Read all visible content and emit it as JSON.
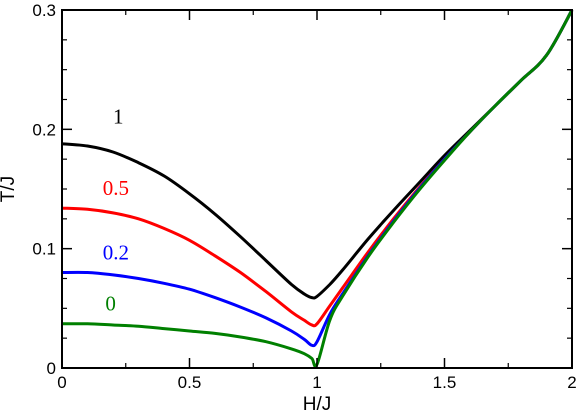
{
  "chart_data": {
    "type": "line",
    "xlabel": "H/J",
    "ylabel": "T/J",
    "xlim": [
      0,
      2
    ],
    "ylim": [
      0,
      0.3
    ],
    "x_ticks": [
      0,
      0.5,
      1,
      1.5,
      2
    ],
    "x_tick_labels": [
      "0",
      "0.5",
      "1",
      "1.5",
      "2"
    ],
    "y_ticks": [
      0,
      0.1,
      0.2,
      0.3
    ],
    "y_tick_labels": [
      "0",
      "0.1",
      "0.2",
      "0.3"
    ],
    "grid": false,
    "legend": "none",
    "series": [
      {
        "name": "1",
        "color": "#000000",
        "x": [
          0,
          0.1,
          0.2,
          0.3,
          0.4,
          0.5,
          0.6,
          0.7,
          0.8,
          0.9,
          0.95,
          0.98,
          1.0,
          1.05,
          1.1,
          1.2,
          1.3,
          1.4,
          1.5,
          1.6,
          1.7,
          1.8,
          1.9,
          2.0
        ],
        "y": [
          0.188,
          0.186,
          0.181,
          0.172,
          0.161,
          0.146,
          0.129,
          0.11,
          0.09,
          0.07,
          0.062,
          0.059,
          0.06,
          0.07,
          0.082,
          0.108,
          0.132,
          0.155,
          0.178,
          0.199,
          0.22,
          0.241,
          0.262,
          0.3
        ]
      },
      {
        "name": "0.5",
        "color": "#ff0000",
        "x": [
          0,
          0.1,
          0.2,
          0.3,
          0.4,
          0.5,
          0.6,
          0.7,
          0.8,
          0.9,
          0.95,
          0.98,
          1.0,
          1.05,
          1.1,
          1.2,
          1.3,
          1.4,
          1.5,
          1.6,
          1.7,
          1.8,
          1.9,
          2.0
        ],
        "y": [
          0.134,
          0.133,
          0.13,
          0.125,
          0.117,
          0.107,
          0.094,
          0.08,
          0.064,
          0.047,
          0.04,
          0.036,
          0.037,
          0.052,
          0.067,
          0.097,
          0.125,
          0.151,
          0.175,
          0.198,
          0.22,
          0.241,
          0.262,
          0.3
        ]
      },
      {
        "name": "0.2",
        "color": "#0000ff",
        "x": [
          0,
          0.1,
          0.2,
          0.3,
          0.4,
          0.5,
          0.6,
          0.7,
          0.8,
          0.9,
          0.95,
          0.98,
          1.0,
          1.05,
          1.1,
          1.2,
          1.3,
          1.4,
          1.5,
          1.6,
          1.7,
          1.8,
          1.9,
          2.0
        ],
        "y": [
          0.08,
          0.08,
          0.078,
          0.075,
          0.071,
          0.066,
          0.059,
          0.051,
          0.042,
          0.031,
          0.024,
          0.019,
          0.022,
          0.045,
          0.062,
          0.094,
          0.123,
          0.15,
          0.175,
          0.198,
          0.22,
          0.241,
          0.262,
          0.3
        ]
      },
      {
        "name": "0",
        "color": "#008000",
        "x": [
          0,
          0.1,
          0.2,
          0.3,
          0.4,
          0.5,
          0.6,
          0.7,
          0.8,
          0.9,
          0.95,
          0.98,
          1.0,
          1.05,
          1.1,
          1.2,
          1.3,
          1.4,
          1.5,
          1.6,
          1.7,
          1.8,
          1.9,
          2.0
        ],
        "y": [
          0.037,
          0.037,
          0.036,
          0.035,
          0.033,
          0.031,
          0.029,
          0.026,
          0.022,
          0.016,
          0.012,
          0.008,
          0.003,
          0.04,
          0.06,
          0.093,
          0.122,
          0.149,
          0.174,
          0.198,
          0.22,
          0.241,
          0.262,
          0.3
        ]
      }
    ]
  }
}
